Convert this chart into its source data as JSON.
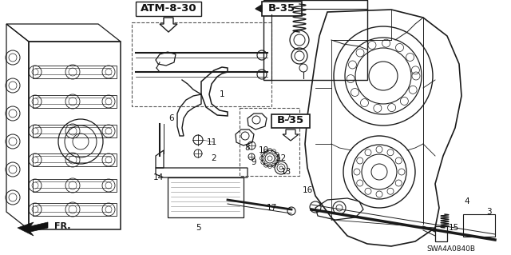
{
  "bg_color": "#ffffff",
  "diagram_code": "SWA4A0840B",
  "page_ref": "ATM-8-30",
  "section_ref1": "B-35",
  "section_ref2": "B-35",
  "fr_label": "FR.",
  "line_color": "#1a1a1a",
  "text_color": "#111111",
  "label_fontsize": 7.5,
  "code_fontsize": 6.5,
  "ref_fontsize": 9.5
}
